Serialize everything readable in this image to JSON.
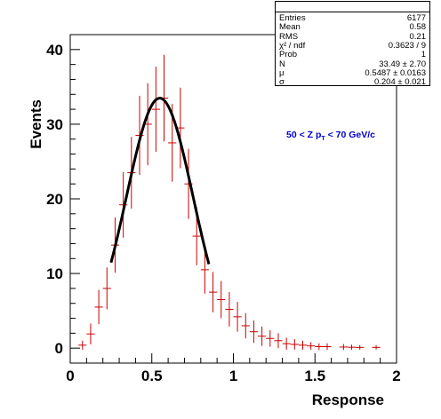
{
  "chart_data": {
    "type": "histogram",
    "xlabel": "Response",
    "ylabel": "Events",
    "xlim": [
      0,
      2
    ],
    "ylim": [
      -2,
      42
    ],
    "xticks": [
      "0",
      "0.5",
      "1",
      "1.5",
      "2"
    ],
    "yticks": [
      "0",
      "10",
      "20",
      "30",
      "40"
    ],
    "annotation": "50 < Z p_T < 70 GeV/c",
    "annotation_color": "#0000cc",
    "bin_width": 0.05,
    "series": [
      {
        "color": "#cc0000",
        "x": [
          0.075,
          0.125,
          0.175,
          0.225,
          0.275,
          0.325,
          0.375,
          0.425,
          0.475,
          0.525,
          0.575,
          0.625,
          0.675,
          0.725,
          0.775,
          0.825,
          0.875,
          0.925,
          0.975,
          1.025,
          1.075,
          1.125,
          1.175,
          1.225,
          1.275,
          1.325,
          1.375,
          1.425,
          1.475,
          1.525,
          1.575,
          1.675,
          1.725,
          1.775,
          1.875
        ],
        "y": [
          0.4,
          1.9,
          5.5,
          8.0,
          13.8,
          19.2,
          23.5,
          28.5,
          30.0,
          32.0,
          33.5,
          27.5,
          29.5,
          22.0,
          15.0,
          10.5,
          7.5,
          6.5,
          5.2,
          4.2,
          3.0,
          2.2,
          1.6,
          1.3,
          1.0,
          0.6,
          0.5,
          0.4,
          0.3,
          0.2,
          0.2,
          0.15,
          0.12,
          0.1,
          0.1
        ],
        "err": [
          0.6,
          1.4,
          2.3,
          2.8,
          3.7,
          4.4,
          4.8,
          5.3,
          5.5,
          5.7,
          5.8,
          5.2,
          5.4,
          4.7,
          3.9,
          3.2,
          2.7,
          2.5,
          2.3,
          2.0,
          1.7,
          1.5,
          1.3,
          1.1,
          1.0,
          0.8,
          0.7,
          0.6,
          0.5,
          0.45,
          0.45,
          0.4,
          0.35,
          0.3,
          0.3
        ]
      }
    ],
    "fit": {
      "type": "gaussian",
      "N": 33.49,
      "mu": 0.5487,
      "sigma": 0.204,
      "xmin": 0.25,
      "xmax": 0.85,
      "color": "#000000"
    },
    "stats": {
      "title": "",
      "rows": [
        {
          "key": "Entries",
          "value": "6177"
        },
        {
          "key": "Mean",
          "value": "0.58"
        },
        {
          "key": "RMS",
          "value": "0.21"
        },
        {
          "key": "χ² / ndf",
          "value": "0.3623 / 9"
        },
        {
          "key": "Prob",
          "value": "1"
        },
        {
          "key": "N",
          "value": "33.49 ± 2.70"
        },
        {
          "key": "μ",
          "value": "0.5487 ± 0.0163"
        },
        {
          "key": "σ",
          "value": "0.204 ± 0.021"
        }
      ]
    }
  }
}
